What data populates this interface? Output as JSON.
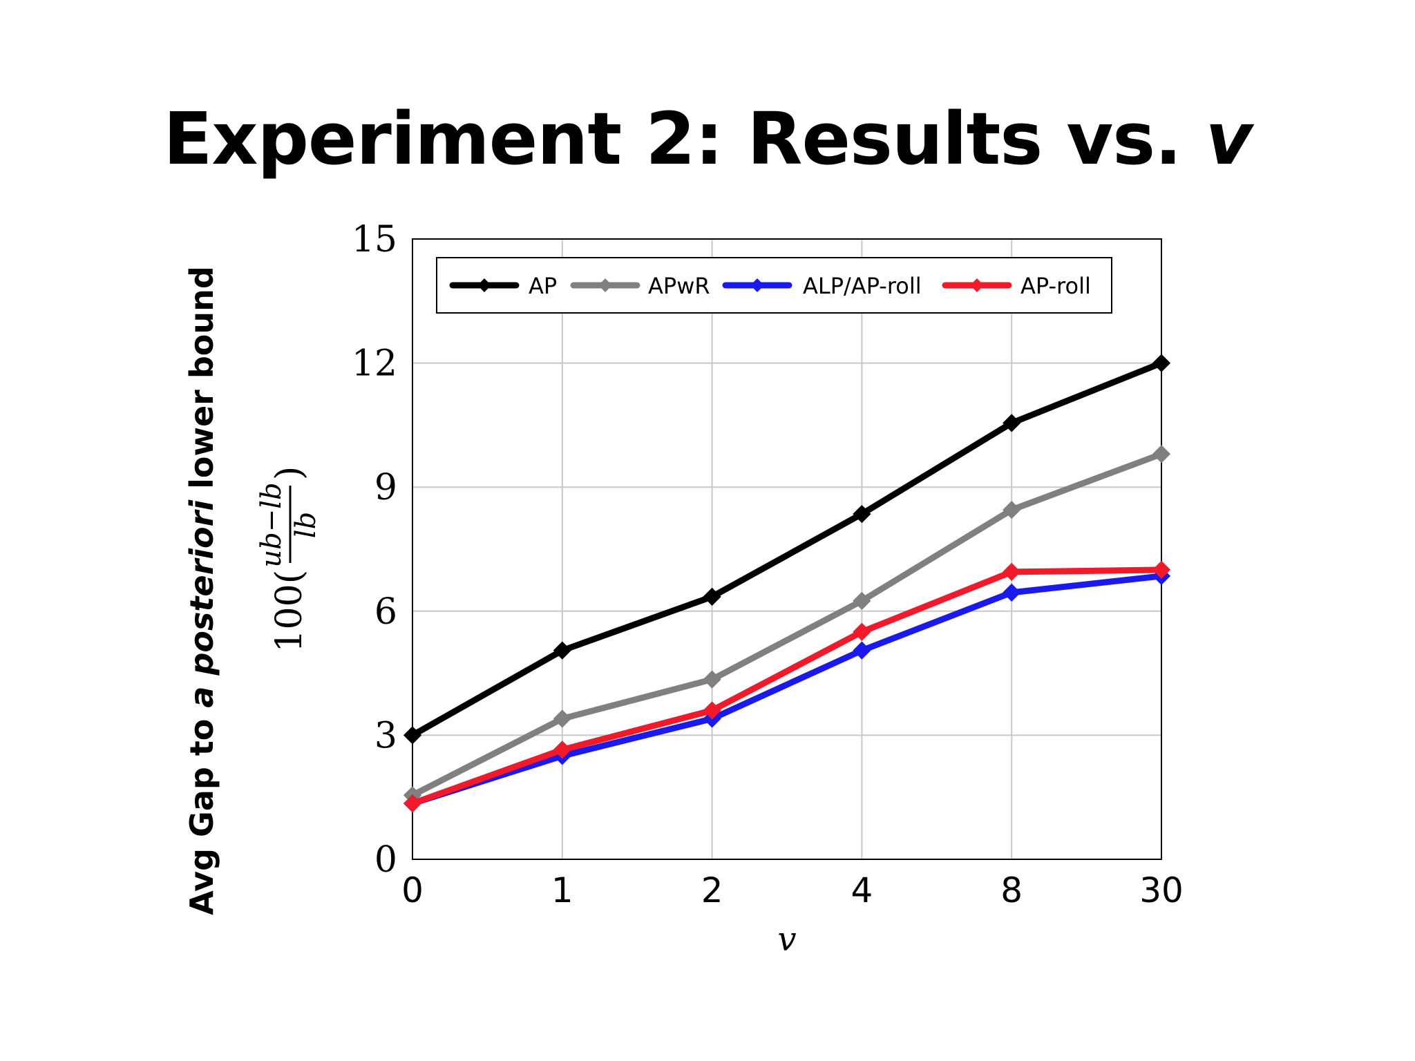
{
  "slide": {
    "title_main": "Experiment 2: Results vs. ",
    "title_var": "v",
    "side_label_pre": "Avg Gap to ",
    "side_label_em": "a posteriori",
    "side_label_post": " lower bound"
  },
  "chart_data": {
    "type": "line",
    "title": "",
    "xlabel": "v",
    "ylabel": "100(ub−lb / lb)",
    "ylabel_parts": {
      "prefix": "100(",
      "numerator": "ub−lb",
      "denominator": "lb",
      "suffix": ")"
    },
    "categories": [
      "0",
      "1",
      "2",
      "4",
      "8",
      "30"
    ],
    "ylim": [
      0,
      15
    ],
    "yticks": [
      0,
      3,
      6,
      9,
      12,
      15
    ],
    "grid": true,
    "legend_position": "top",
    "series": [
      {
        "name": "AP",
        "color": "#000000",
        "values": [
          3.0,
          5.05,
          6.35,
          8.35,
          10.55,
          12.0
        ]
      },
      {
        "name": "APwR",
        "color": "#808080",
        "values": [
          1.55,
          3.4,
          4.35,
          6.25,
          8.45,
          9.8
        ]
      },
      {
        "name": "ALP/AP-roll",
        "color": "#1a1aee",
        "values": [
          1.35,
          2.5,
          3.4,
          5.05,
          6.45,
          6.85
        ]
      },
      {
        "name": "AP-roll",
        "color": "#f01a2a",
        "values": [
          1.35,
          2.65,
          3.6,
          5.5,
          6.95,
          7.0
        ]
      }
    ]
  }
}
